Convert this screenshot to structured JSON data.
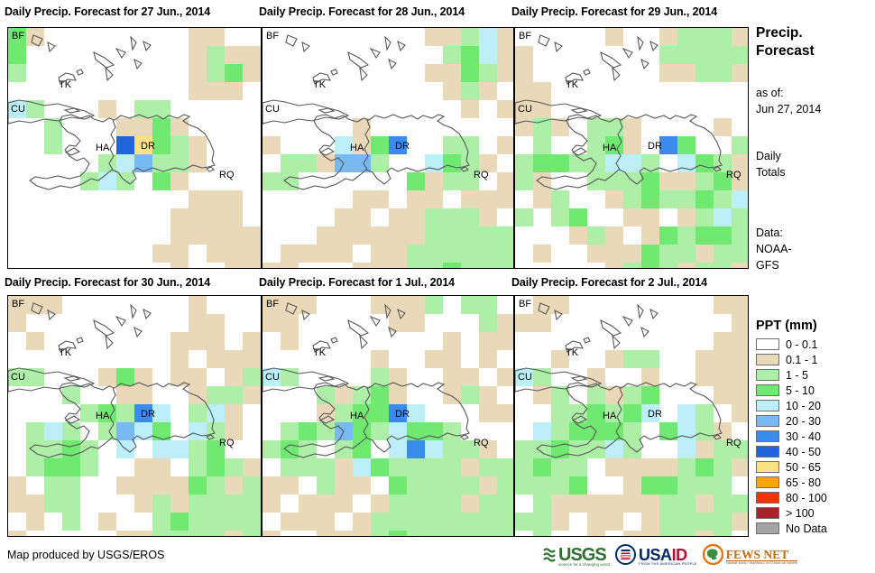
{
  "panels": [
    {
      "title": "Daily Precip. Forecast for 27 Jun., 2014",
      "grid": [
        "Gt........tt..",
        "G.........tgtt",
        "g.........tgGt",
        "..........ttt.",
        "cg...t.gg.....",
        "..g...ttGt....",
        "..g...DyGgt...",
        ".....gcbggt...",
        "....gcg.Gt....",
        "..........ttt.",
        ".........tttt.",
        ".........ttttt",
        "........tt.ttt",
        ".........t..tt"
      ]
    },
    {
      "title": "Daily Precip. Forecast for 28 Jun., 2014",
      "grid": [
        ".........ttgct",
        "..........gGct",
        ".........ttGgt",
        "..........tgt.",
        "...........t.t",
        ".....t........",
        "t...ctGB..gg.t",
        ".ggtbbg..cGgt.",
        "gg......Gtgg.t",
        ".....tt.tt.ttt",
        "....tt.ttgggt.",
        "...ttttttggggg",
        ".tttt.ttgggggg",
        "tt...tttggGggg"
      ]
    },
    {
      "title": "Daily Precip. Forecast for 29 Jun., 2014",
      "grid": [
        ".....t..tgggtg",
        "t.......gggggg",
        "t.......ttggtg",
        "tt............",
        "tt............",
        "tgt.ggt....t.g",
        ".g..gGt.BG..gg",
        "gGGggccg.cGgtg",
        "gt..gggGttgGtt",
        ".tg..tgGggGgcg",
        "g.gG..tt.tgcgg",
        "...tgt.tGgGGgg",
        ".t..tttGggtggg",
        ".....tgGgtggtg"
      ]
    },
    {
      "title": "Daily Precip. Forecast for 30 Jun., 2014",
      "grid": [
        "ttt.......t...",
        "t.........tt..",
        ".t.......ttt.t",
        ".........t.ttt",
        "gg...tGt.tt.tg",
        "...g..tt..tggt",
        "....gGgBc.gct.",
        ".gcg.gbcG.cgt.",
        ".ggGg.c.ccgG..",
        ".gGGg..tt.gGgt",
        "t.gg..ttttGgtg",
        "ttgg...tgtgggg",
        ".t.g.t..gGgggg",
        "t.....ttggggtg"
      ]
    },
    {
      "title": "Daily Precip. Forecast for 1 Jul., 2014",
      "grid": [
        "ttt...tttg.gg.",
        "tt.....tt...gt",
        ".t........t.tt",
        "......t..tt.t.",
        "cg....gt..tt.t",
        "...gtgGt..tgt.",
        "...tgGGBc...tt",
        ".gGgbGgcGGg...",
        "gGg.gG.cBcggt.",
        ".gggtcGggggtgg",
        "tt.gtt.Gggggtg",
        "t.ttt.tggggtgg",
        ".ttt.tgggggggg",
        "t..tttgGgggggg"
      ]
    },
    {
      "title": "Daily Precip. Forecast for 2 Jul., 2014",
      "grid": [
        ".tt........tt.",
        "tt..........t.",
        "...........tt.",
        "..t..tgg..ttt.",
        "cg..t..t..tttt",
        ".tg.gtgG...tt.",
        "..ggGgGc.cg.t.",
        ".cgGGGg.Gcgt..",
        "ggGggcg..ctgg.",
        "gGgg.ttttgGgt.",
        "gggG..tGGggg.t",
        ".gttttttggtgg.",
        "ggt.tt.tggggt.",
        ".g..t.ttggtg.."
      ]
    }
  ],
  "cell_colors": {
    "t": "#EAD9B8",
    "g": "#ADEFA6",
    "G": "#6FE96F",
    "c": "#BCEFF7",
    "b": "#79B9F2",
    "B": "#3A8BEE",
    "D": "#2263DE",
    "y": "#FAE184"
  },
  "map_labels": [
    "BF",
    "TK",
    "CU",
    "HA",
    "DR",
    "RQ"
  ],
  "sidebar": {
    "title_line1": "Precip.",
    "title_line2": "Forecast",
    "as_of_label": "as of:",
    "as_of_date": "Jun 27, 2014",
    "period_line1": "Daily",
    "period_line2": "Totals",
    "data_label": "Data:",
    "data_source_line1": "NOAA-",
    "data_source_line2": "GFS"
  },
  "legend": {
    "title": "PPT (mm)",
    "entries": [
      {
        "label": "0 - 0.1",
        "color": "#FFFFFF"
      },
      {
        "label": "0.1 - 1",
        "color": "#EAD9B8"
      },
      {
        "label": "1 - 5",
        "color": "#ADEFA6"
      },
      {
        "label": "5 - 10",
        "color": "#6FE96F"
      },
      {
        "label": "10 - 20",
        "color": "#BCEFF7"
      },
      {
        "label": "20 - 30",
        "color": "#79B9F2"
      },
      {
        "label": "30 - 40",
        "color": "#3A8BEE"
      },
      {
        "label": "40 - 50",
        "color": "#2263DE"
      },
      {
        "label": "50 - 65",
        "color": "#FAE184"
      },
      {
        "label": "65 - 80",
        "color": "#FFA400"
      },
      {
        "label": "80 - 100",
        "color": "#F53100"
      },
      {
        "label": "> 100",
        "color": "#A6232A"
      },
      {
        "label": "No Data",
        "color": "#A5A5A5"
      }
    ]
  },
  "footer": {
    "credit": "Map produced by USGS/EROS"
  },
  "logos": {
    "usgs": {
      "name": "USGS",
      "tagline": "science for a changing world"
    },
    "usaid": {
      "name_part1": "USA",
      "name_part2": "ID",
      "tagline": "FROM THE AMERICAN PEOPLE"
    },
    "fewsnet": {
      "name": "FEWS NET",
      "tagline": "FAMINE EARLY WARNING SYSTEMS NETWORK"
    }
  }
}
